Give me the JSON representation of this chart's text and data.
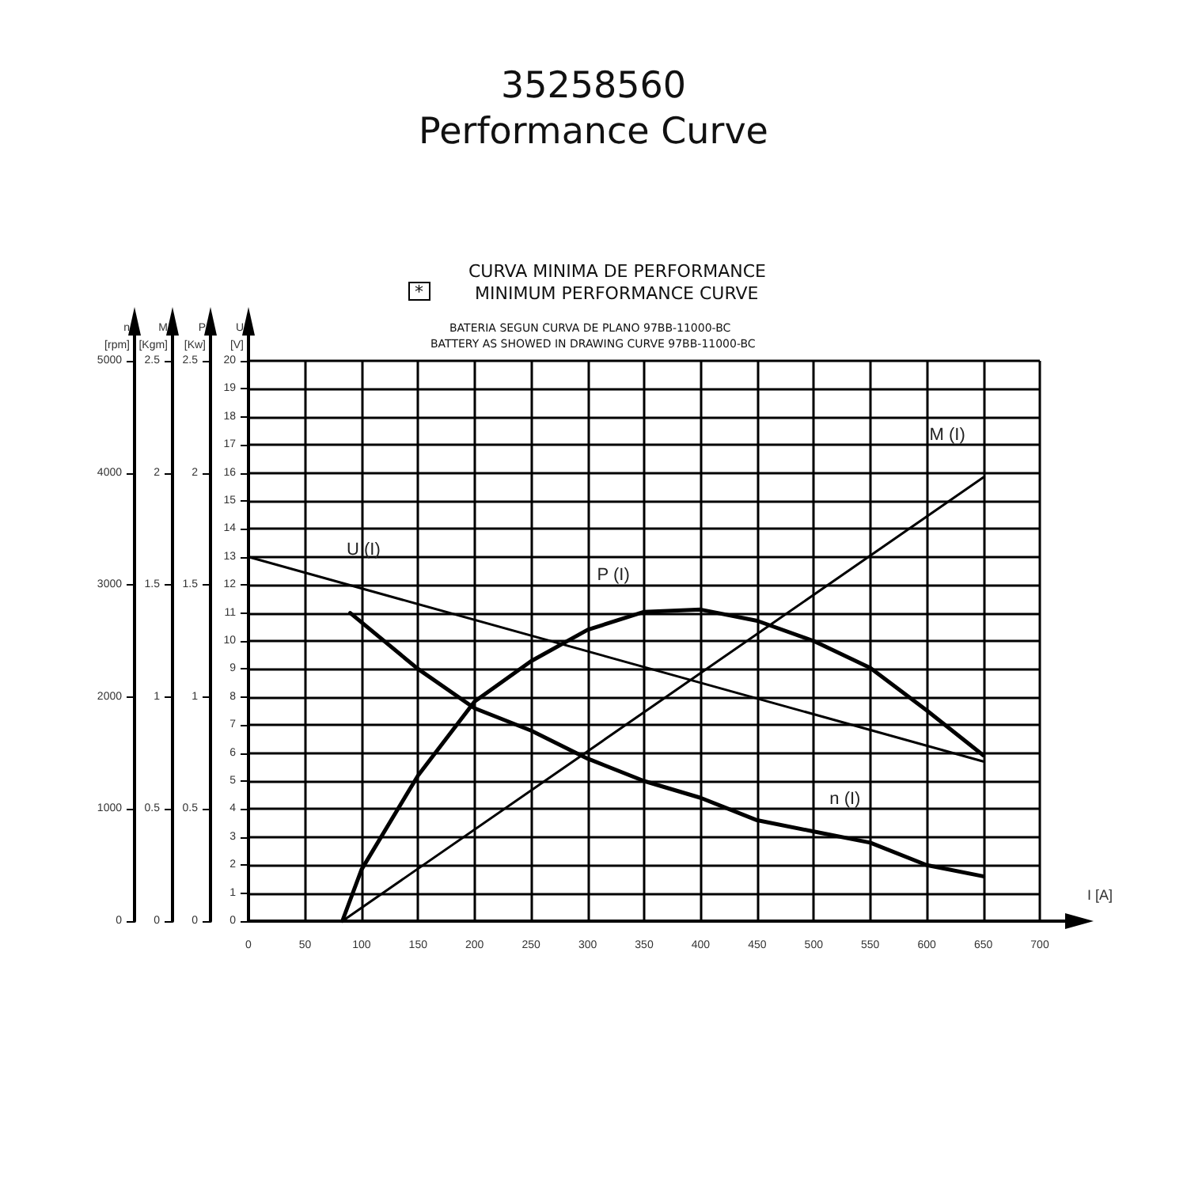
{
  "chart_data": {
    "type": "line",
    "title": "35258560",
    "subtitle": "Performance Curve",
    "annotations": [
      "P\n[Kw]",
      "0",
      "0.5",
      "1",
      "1.5",
      "2",
      "2.5",
      "*",
      "CURVA MINIMA DE PERFORMANCE",
      "MINIMUM PERFORMANCE CURVE",
      "BATERIA SEGUN CURVA DE PLANO 97BB-11000-BC",
      "BATTERY AS SHOWED IN DRAWING CURVE 97BB-11000-BC"
    ],
    "xlabel": "I [A]",
    "xlim": [
      0,
      700
    ],
    "xticks": [
      0,
      50,
      100,
      150,
      200,
      250,
      300,
      350,
      400,
      450,
      500,
      550,
      600,
      650,
      700
    ],
    "ylabel": "U\n[V]",
    "ylim": [
      0,
      20
    ],
    "yticks": [
      0,
      1,
      2,
      3,
      4,
      5,
      6,
      7,
      8,
      9,
      10,
      11,
      12,
      13,
      14,
      15,
      16,
      17,
      18,
      19,
      20
    ],
    "y2label": "n\n[rpm]",
    "y2lim": [
      0,
      5000
    ],
    "y2ticks": [
      0,
      1000,
      2000,
      3000,
      4000,
      5000
    ],
    "y3label": "M\n[Kgm]",
    "y3lim": [
      0,
      2.5
    ],
    "y3ticks": [
      0,
      0.5,
      1,
      1.5,
      2,
      2.5
    ],
    "grid": true,
    "legend": false,
    "marker": "none",
    "line_style": "solid",
    "series": [
      {
        "name": "U (I)",
        "color": "#000000",
        "axis": "y",
        "x": [
          0,
          650
        ],
        "values": [
          13,
          5.7
        ]
      },
      {
        "name": "P (I)",
        "color": "#000000",
        "axis": "y3",
        "x": [
          83,
          100,
          150,
          200,
          250,
          300,
          350,
          400,
          450,
          500,
          550,
          600,
          650
        ],
        "values": [
          0,
          0.23,
          0.65,
          0.98,
          1.16,
          1.3,
          1.38,
          1.39,
          1.34,
          1.25,
          1.13,
          0.94,
          0.74
        ]
      },
      {
        "name": "M (I)",
        "color": "#000000",
        "axis": "y3",
        "x": [
          83,
          650
        ],
        "values": [
          0,
          1.98
        ]
      },
      {
        "name": "n (I)",
        "color": "#000000",
        "axis": "y2",
        "x": [
          90,
          150,
          200,
          250,
          300,
          350,
          400,
          450,
          500,
          550,
          600,
          650
        ],
        "values": [
          2750,
          2250,
          1900,
          1700,
          1450,
          1250,
          1100,
          900,
          800,
          700,
          500,
          400
        ]
      }
    ]
  }
}
